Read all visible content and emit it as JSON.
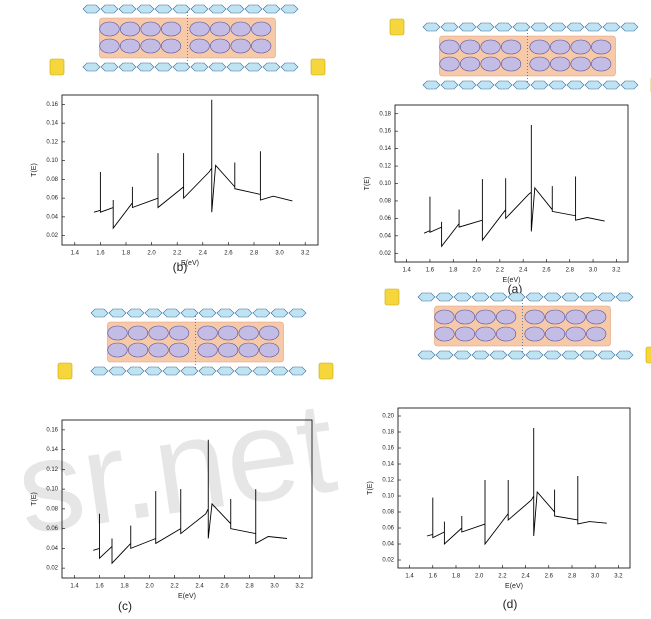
{
  "watermark": "sr.net",
  "chart_data": [
    {
      "type": "line",
      "label": "(b)",
      "x_label": "E(eV)",
      "y_label": "T(E)",
      "xlim": [
        1.3,
        3.3
      ],
      "xticks": [
        1.4,
        1.6,
        1.8,
        {
          "value": 2,
          "label": "2.0"
        },
        2.2,
        2.4,
        2.6,
        2.8,
        {
          "value": 3,
          "label": "3.0"
        },
        3.2
      ],
      "ylim": [
        0.01,
        0.17
      ],
      "yticks": [
        0.02,
        0.04,
        0.06,
        0.08,
        {
          "value": 0.1,
          "label": "0.10"
        },
        0.12,
        0.14,
        0.16
      ],
      "series": [
        {
          "color": "#000000",
          "x": [
            1.55,
            1.6,
            1.6,
            1.6,
            1.7,
            1.7,
            1.7,
            1.85,
            1.85,
            1.85,
            2.05,
            2.05,
            2.05,
            2.25,
            2.25,
            2.25,
            2.45,
            2.47,
            2.47,
            2.47,
            2.5,
            2.65,
            2.65,
            2.65,
            2.85,
            2.85,
            2.85,
            2.95,
            3.1
          ],
          "values": [
            0.045,
            0.047,
            0.088,
            0.045,
            0.05,
            0.058,
            0.028,
            0.055,
            0.072,
            0.05,
            0.06,
            0.108,
            0.05,
            0.072,
            0.108,
            0.06,
            0.088,
            0.092,
            0.165,
            0.045,
            0.095,
            0.072,
            0.098,
            0.07,
            0.064,
            0.11,
            0.058,
            0.062,
            0.057
          ]
        }
      ]
    },
    {
      "type": "line",
      "label": "(a)",
      "x_label": "E(eV)",
      "y_label": "T(E)",
      "xlim": [
        1.3,
        3.3
      ],
      "xticks": [
        1.4,
        1.6,
        1.8,
        {
          "value": 2,
          "label": "2.0"
        },
        2.2,
        2.4,
        2.6,
        2.8,
        {
          "value": 3,
          "label": "3.0"
        },
        3.2
      ],
      "ylim": [
        0.01,
        0.19
      ],
      "yticks": [
        0.02,
        0.04,
        0.06,
        0.08,
        {
          "value": 0.1,
          "label": "0.10"
        },
        0.12,
        0.14,
        0.16,
        0.18
      ],
      "series": [
        {
          "color": "#000000",
          "x": [
            1.55,
            1.6,
            1.6,
            1.6,
            1.7,
            1.7,
            1.7,
            1.85,
            1.85,
            1.85,
            2.05,
            2.05,
            2.05,
            2.25,
            2.25,
            2.25,
            2.45,
            2.47,
            2.47,
            2.47,
            2.5,
            2.65,
            2.65,
            2.65,
            2.85,
            2.85,
            2.85,
            2.95,
            3.1
          ],
          "values": [
            0.043,
            0.046,
            0.085,
            0.044,
            0.05,
            0.056,
            0.028,
            0.054,
            0.07,
            0.05,
            0.058,
            0.105,
            0.035,
            0.07,
            0.106,
            0.06,
            0.088,
            0.09,
            0.167,
            0.045,
            0.095,
            0.07,
            0.097,
            0.068,
            0.063,
            0.108,
            0.058,
            0.061,
            0.057
          ]
        }
      ]
    },
    {
      "type": "line",
      "label": "(c)",
      "x_label": "E(eV)",
      "y_label": "T(E)",
      "xlim": [
        1.3,
        3.3
      ],
      "xticks": [
        1.4,
        1.6,
        1.8,
        {
          "value": 2,
          "label": "2.0"
        },
        2.2,
        2.4,
        2.6,
        2.8,
        {
          "value": 3,
          "label": "3.0"
        },
        3.2
      ],
      "ylim": [
        0.01,
        0.17
      ],
      "yticks": [
        0.02,
        0.04,
        0.06,
        0.08,
        {
          "value": 0.1,
          "label": "0.10"
        },
        0.12,
        0.14,
        0.16
      ],
      "series": [
        {
          "color": "#000000",
          "x": [
            1.55,
            1.6,
            1.6,
            1.6,
            1.7,
            1.7,
            1.7,
            1.85,
            1.85,
            1.85,
            2.05,
            2.05,
            2.05,
            2.25,
            2.25,
            2.25,
            2.45,
            2.47,
            2.47,
            2.47,
            2.5,
            2.65,
            2.65,
            2.65,
            2.85,
            2.85,
            2.85,
            2.95,
            3.1
          ],
          "values": [
            0.038,
            0.04,
            0.075,
            0.03,
            0.042,
            0.05,
            0.025,
            0.045,
            0.063,
            0.04,
            0.05,
            0.098,
            0.045,
            0.06,
            0.1,
            0.055,
            0.075,
            0.08,
            0.15,
            0.05,
            0.085,
            0.065,
            0.09,
            0.06,
            0.055,
            0.1,
            0.045,
            0.052,
            0.05
          ]
        }
      ]
    },
    {
      "type": "line",
      "label": "(d)",
      "x_label": "E(eV)",
      "y_label": "T(E)",
      "xlim": [
        1.3,
        3.3
      ],
      "xticks": [
        1.4,
        1.6,
        1.8,
        {
          "value": 2,
          "label": "2.0"
        },
        2.2,
        2.4,
        2.6,
        2.8,
        {
          "value": 3,
          "label": "3.0"
        },
        3.2
      ],
      "ylim": [
        0.01,
        0.21
      ],
      "yticks": [
        0.02,
        0.04,
        0.06,
        0.08,
        {
          "value": 0.1,
          "label": "0.10"
        },
        0.12,
        0.14,
        0.16,
        0.18,
        {
          "value": 0.2,
          "label": "0.20"
        }
      ],
      "series": [
        {
          "color": "#000000",
          "x": [
            1.55,
            1.6,
            1.6,
            1.6,
            1.7,
            1.7,
            1.7,
            1.85,
            1.85,
            1.85,
            2.05,
            2.05,
            2.05,
            2.25,
            2.25,
            2.25,
            2.45,
            2.47,
            2.47,
            2.47,
            2.5,
            2.65,
            2.65,
            2.65,
            2.85,
            2.85,
            2.85,
            2.95,
            3.1
          ],
          "values": [
            0.05,
            0.052,
            0.098,
            0.048,
            0.055,
            0.068,
            0.04,
            0.06,
            0.075,
            0.055,
            0.065,
            0.12,
            0.04,
            0.078,
            0.12,
            0.07,
            0.095,
            0.1,
            0.185,
            0.05,
            0.105,
            0.08,
            0.108,
            0.075,
            0.07,
            0.125,
            0.065,
            0.068,
            0.066
          ]
        }
      ]
    }
  ]
}
